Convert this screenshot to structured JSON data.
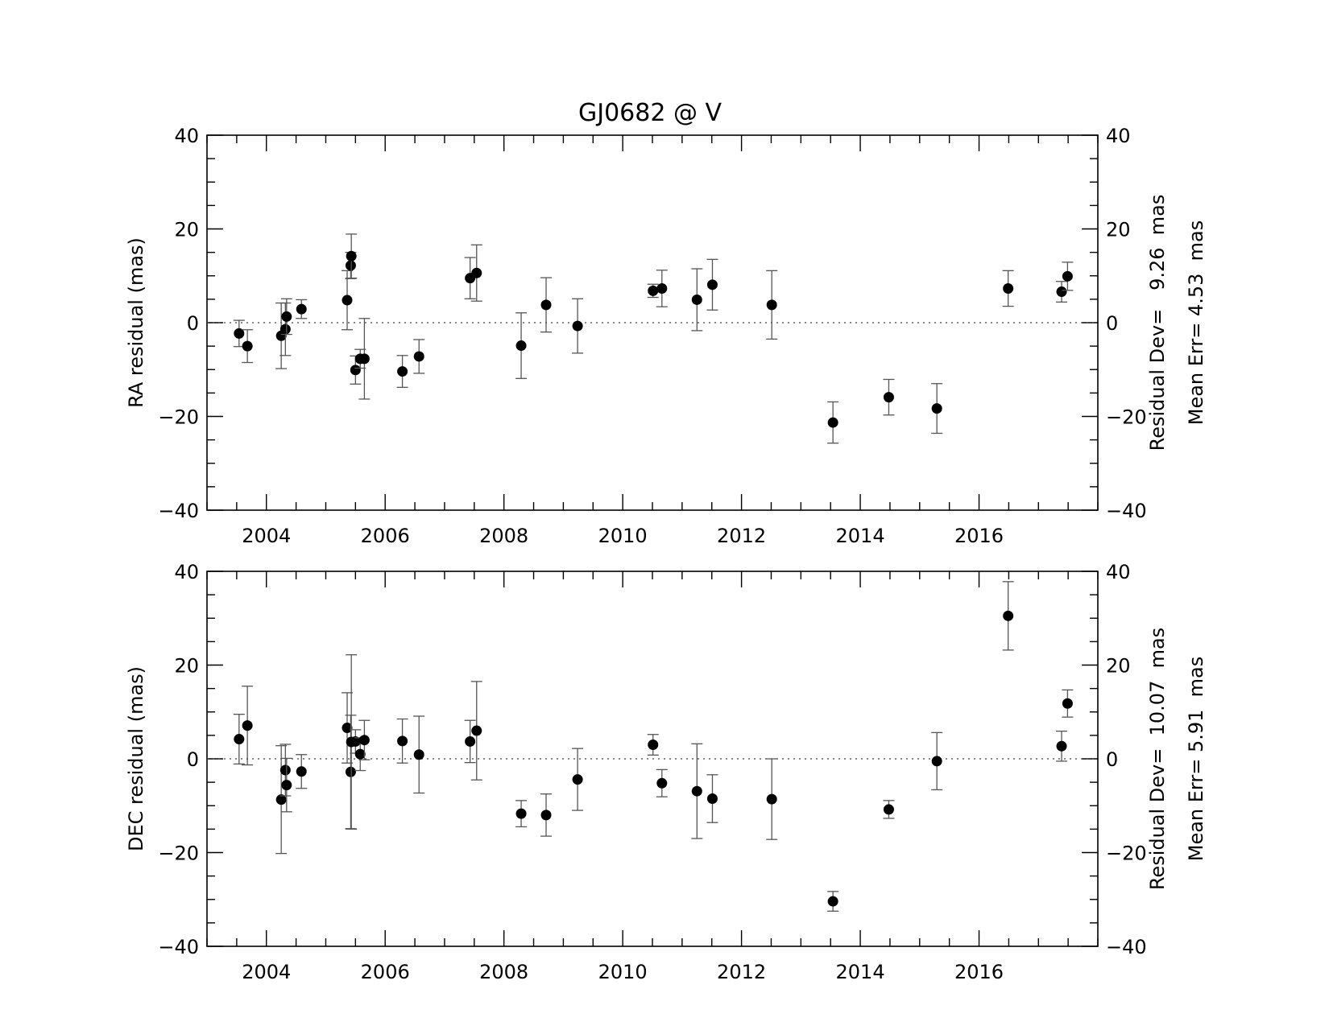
{
  "chart_data": {
    "type": "scatter",
    "title": "GJ0682 @ V",
    "panels": [
      {
        "id": "ra",
        "ylabel": "RA residual (mas)",
        "ylim": [
          -40,
          40
        ],
        "xlim": [
          2003.0,
          2018.0
        ],
        "yticks": [
          -40,
          -20,
          0,
          20,
          40
        ],
        "xticks": [
          2004,
          2006,
          2008,
          2010,
          2012,
          2014,
          2016
        ],
        "zero_line": true,
        "stats": [
          "Residual Dev=   9.26  mas",
          "Mean Err= 4.53  mas"
        ],
        "points": [
          {
            "x": 2003.54,
            "y": -2.3,
            "err": 2.8
          },
          {
            "x": 2003.68,
            "y": -5.0,
            "err": 3.5
          },
          {
            "x": 2004.25,
            "y": -2.8,
            "err": 7.0
          },
          {
            "x": 2004.32,
            "y": -1.4,
            "err": 5.6
          },
          {
            "x": 2004.34,
            "y": 1.3,
            "err": 3.8
          },
          {
            "x": 2004.59,
            "y": 2.9,
            "err": 2.0
          },
          {
            "x": 2005.36,
            "y": 4.8,
            "err": 6.3
          },
          {
            "x": 2005.42,
            "y": 12.2,
            "err": 2.8
          },
          {
            "x": 2005.43,
            "y": 14.2,
            "err": 4.7
          },
          {
            "x": 2005.5,
            "y": -10.1,
            "err": 3.0
          },
          {
            "x": 2005.58,
            "y": -7.7,
            "err": 2.0
          },
          {
            "x": 2005.65,
            "y": -7.7,
            "err": 8.6
          },
          {
            "x": 2006.29,
            "y": -10.4,
            "err": 3.4
          },
          {
            "x": 2006.57,
            "y": -7.2,
            "err": 3.6
          },
          {
            "x": 2007.43,
            "y": 9.5,
            "err": 4.4
          },
          {
            "x": 2007.54,
            "y": 10.6,
            "err": 6.0
          },
          {
            "x": 2008.29,
            "y": -4.9,
            "err": 7.0
          },
          {
            "x": 2008.71,
            "y": 3.8,
            "err": 5.8
          },
          {
            "x": 2009.24,
            "y": -0.7,
            "err": 5.8
          },
          {
            "x": 2010.51,
            "y": 6.8,
            "err": 1.4
          },
          {
            "x": 2010.66,
            "y": 7.3,
            "err": 3.9
          },
          {
            "x": 2011.25,
            "y": 4.9,
            "err": 6.6
          },
          {
            "x": 2011.51,
            "y": 8.1,
            "err": 5.4
          },
          {
            "x": 2012.51,
            "y": 3.8,
            "err": 7.3
          },
          {
            "x": 2013.54,
            "y": -21.3,
            "err": 4.4
          },
          {
            "x": 2014.48,
            "y": -15.9,
            "err": 3.8
          },
          {
            "x": 2015.29,
            "y": -18.3,
            "err": 5.3
          },
          {
            "x": 2016.49,
            "y": 7.3,
            "err": 3.8
          },
          {
            "x": 2017.39,
            "y": 6.6,
            "err": 2.2
          },
          {
            "x": 2017.49,
            "y": 9.9,
            "err": 3.0
          }
        ]
      },
      {
        "id": "dec",
        "ylabel": "DEC residual (mas)",
        "ylim": [
          -40,
          40
        ],
        "xlim": [
          2003.0,
          2018.0
        ],
        "yticks": [
          -40,
          -20,
          0,
          20,
          40
        ],
        "xticks": [
          2004,
          2006,
          2008,
          2010,
          2012,
          2014,
          2016
        ],
        "zero_line": true,
        "stats": [
          "Residual Dev=  10.07  mas",
          "Mean Err= 5.91  mas"
        ],
        "points": [
          {
            "x": 2003.54,
            "y": 4.2,
            "err": 5.3
          },
          {
            "x": 2003.68,
            "y": 7.1,
            "err": 8.4
          },
          {
            "x": 2004.25,
            "y": -8.7,
            "err": 11.5
          },
          {
            "x": 2004.32,
            "y": -2.4,
            "err": 5.5
          },
          {
            "x": 2004.34,
            "y": -5.6,
            "err": 5.7
          },
          {
            "x": 2004.59,
            "y": -2.7,
            "err": 3.6
          },
          {
            "x": 2005.36,
            "y": 6.6,
            "err": 7.5
          },
          {
            "x": 2005.42,
            "y": -2.8,
            "err": 12.1
          },
          {
            "x": 2005.43,
            "y": 3.6,
            "err": 18.6
          },
          {
            "x": 2005.5,
            "y": 3.7,
            "err": 2.5
          },
          {
            "x": 2005.58,
            "y": 1.0,
            "err": 3.5
          },
          {
            "x": 2005.65,
            "y": 4.0,
            "err": 4.2
          },
          {
            "x": 2006.29,
            "y": 3.8,
            "err": 4.7
          },
          {
            "x": 2006.57,
            "y": 0.9,
            "err": 8.2
          },
          {
            "x": 2007.43,
            "y": 3.7,
            "err": 4.5
          },
          {
            "x": 2007.54,
            "y": 6.0,
            "err": 10.5
          },
          {
            "x": 2008.29,
            "y": -11.7,
            "err": 2.8
          },
          {
            "x": 2008.71,
            "y": -12.0,
            "err": 4.5
          },
          {
            "x": 2009.24,
            "y": -4.4,
            "err": 6.6
          },
          {
            "x": 2010.51,
            "y": 3.0,
            "err": 2.2
          },
          {
            "x": 2010.66,
            "y": -5.2,
            "err": 2.9
          },
          {
            "x": 2011.25,
            "y": -6.9,
            "err": 10.1
          },
          {
            "x": 2011.51,
            "y": -8.5,
            "err": 5.1
          },
          {
            "x": 2012.51,
            "y": -8.6,
            "err": 8.6
          },
          {
            "x": 2013.54,
            "y": -30.4,
            "err": 2.1
          },
          {
            "x": 2014.48,
            "y": -10.8,
            "err": 1.9
          },
          {
            "x": 2015.29,
            "y": -0.5,
            "err": 6.1
          },
          {
            "x": 2016.49,
            "y": 30.5,
            "err": 7.3
          },
          {
            "x": 2017.39,
            "y": 2.7,
            "err": 3.2
          },
          {
            "x": 2017.49,
            "y": 11.8,
            "err": 2.9
          }
        ]
      }
    ]
  }
}
